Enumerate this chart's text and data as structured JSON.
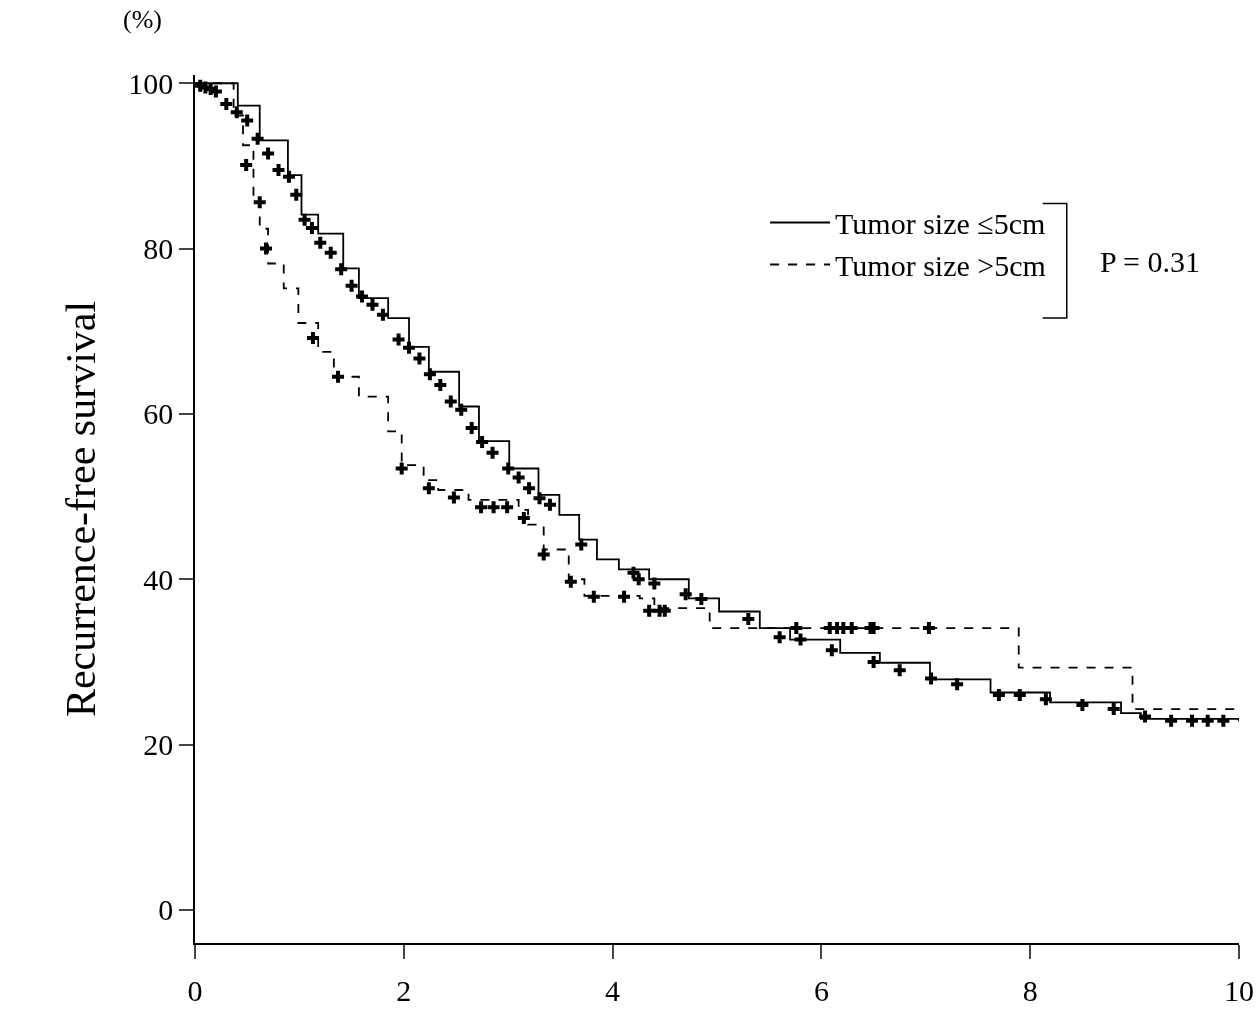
{
  "chart_data": {
    "type": "step",
    "ylabel": "Recurrence-free survival",
    "annotations": [
      "(%)",
      "P = 0.31"
    ],
    "xlim": [
      0,
      10
    ],
    "xticks": [
      0,
      2,
      4,
      6,
      8,
      10
    ],
    "ylim": [
      -4,
      101
    ],
    "yticks": [
      0,
      20,
      40,
      60,
      80,
      100
    ],
    "grid": false,
    "legend": "top right",
    "series": [
      {
        "name": "Tumor size ≤5cm",
        "color": "#000000",
        "line_style": "solid",
        "x": [
          0,
          0.41,
          0.62,
          0.89,
          1.02,
          1.18,
          1.42,
          1.57,
          1.85,
          2.05,
          2.24,
          2.53,
          2.72,
          3.01,
          3.29,
          3.49,
          3.68,
          3.85,
          4.06,
          4.35,
          4.73,
          5.02,
          5.41,
          5.7,
          6.18,
          6.56,
          7.04,
          7.62,
          8.19,
          8.87,
          9.06,
          10
        ],
        "values": [
          100,
          97.3,
          93.1,
          88.9,
          84.1,
          81.8,
          77.6,
          74.0,
          71.6,
          68.1,
          65.1,
          60.9,
          56.7,
          53.4,
          50.2,
          47.8,
          44.8,
          42.4,
          41.2,
          40.0,
          37.7,
          36.1,
          34.1,
          32.7,
          31.1,
          29.9,
          27.9,
          26.3,
          25.1,
          23.8,
          23.1,
          22.8
        ]
      },
      {
        "name": "Tumor size >5cm",
        "color": "#000000",
        "line_style": "dashed",
        "x": [
          0,
          0.37,
          0.46,
          0.56,
          0.62,
          0.7,
          0.85,
          0.99,
          1.18,
          1.33,
          1.57,
          1.85,
          1.98,
          2.19,
          2.33,
          2.62,
          3.1,
          3.19,
          3.34,
          3.58,
          3.73,
          4.26,
          4.4,
          4.93,
          7.89,
          8.98,
          10
        ],
        "values": [
          100,
          96.1,
          92.5,
          86.5,
          82.4,
          78.2,
          75.2,
          71.0,
          67.5,
          64.5,
          62.1,
          57.9,
          53.8,
          52.0,
          50.8,
          49.6,
          48.4,
          46.6,
          43.6,
          40.0,
          38.0,
          37.7,
          36.5,
          34.1,
          29.3,
          24.3,
          24.3
        ]
      },
      {
        "type": "scatter",
        "marker": "cross",
        "color": "#000000",
        "x": [
          0.05,
          0.1,
          0.15,
          0.2,
          0.3,
          0.4,
          0.5,
          0.6,
          0.7,
          0.8,
          0.9,
          0.97,
          1.05,
          1.12,
          1.2,
          1.3,
          1.4,
          1.5,
          1.6,
          1.7,
          1.8,
          1.95,
          2.05,
          2.15,
          2.25,
          2.35,
          2.45,
          2.55,
          2.65,
          2.75,
          2.85,
          3.0,
          3.1,
          3.2,
          3.3,
          3.4,
          3.7,
          4.2,
          4.25,
          4.4,
          4.7,
          4.85,
          5.3,
          5.6,
          5.8,
          6.1,
          6.5,
          6.75,
          7.05,
          7.3,
          7.7,
          7.9,
          8.15,
          8.5,
          8.8,
          9.1,
          9.35,
          9.55,
          9.7,
          9.85
        ],
        "values": [
          99.7,
          99.5,
          99.3,
          99,
          97.5,
          96.5,
          95.5,
          93.3,
          91.5,
          89.5,
          88.7,
          86.5,
          83.5,
          82.5,
          80.7,
          79.5,
          77.5,
          75.5,
          74.2,
          73.2,
          72,
          69,
          68,
          66.7,
          64.8,
          63.5,
          61.5,
          60.5,
          58.3,
          56.6,
          55.3,
          53.4,
          52.3,
          51,
          49.8,
          49,
          44.2,
          40.8,
          40,
          39.5,
          38.2,
          37.6,
          35.2,
          33,
          32.7,
          31.4,
          30,
          29,
          28,
          27.3,
          26,
          26,
          25.5,
          24.8,
          24.3,
          23.4,
          22.9,
          22.9,
          22.9,
          22.9
        ]
      },
      {
        "type": "scatter",
        "marker": "cross",
        "color": "#000000",
        "x": [
          0.49,
          0.62,
          0.68,
          1.13,
          1.37,
          1.98,
          2.24,
          2.48,
          2.74,
          2.86,
          2.99,
          3.15,
          3.34,
          3.6,
          3.82,
          4.11,
          4.35,
          4.45,
          4.5,
          5.76,
          6.08,
          6.15,
          6.21,
          6.29,
          6.47,
          6.5,
          7.03
        ],
        "values": [
          90.1,
          85.6,
          80.0,
          69.2,
          64.5,
          53.4,
          51.0,
          49.9,
          48.7,
          48.7,
          48.7,
          47.4,
          43.0,
          39.7,
          37.9,
          37.9,
          36.2,
          36.2,
          36.2,
          34.1,
          34.1,
          34.1,
          34.1,
          34.1,
          34.1,
          34.1,
          34.1
        ]
      }
    ]
  }
}
